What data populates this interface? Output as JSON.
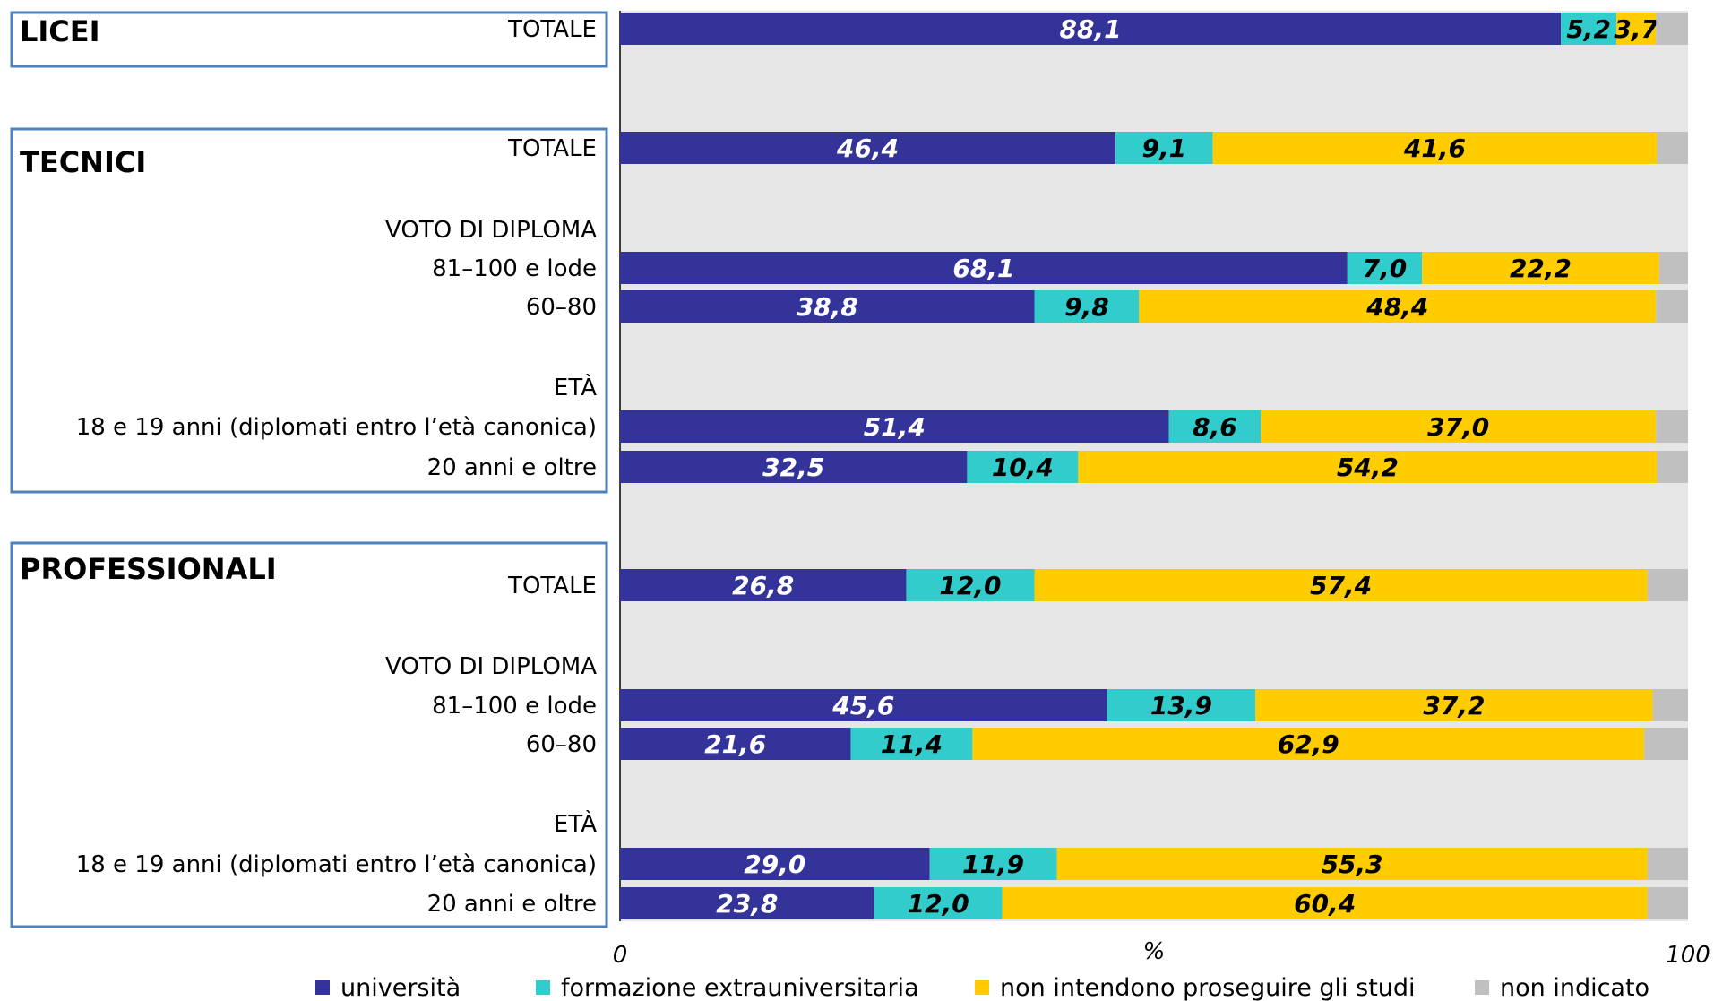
{
  "chart_data": {
    "type": "bar",
    "orientation": "horizontal",
    "stacked": true,
    "xlim": [
      0,
      100
    ],
    "xlabel": "%",
    "x_tick_labels": [
      "0",
      "100"
    ],
    "groups": [
      {
        "name": "LICEI",
        "rows": [
          {
            "label": "TOTALE",
            "kind": "bar",
            "values": [
              88.1,
              5.2,
              3.7,
              3.0
            ]
          }
        ]
      },
      {
        "name": "TECNICI",
        "rows": [
          {
            "label": "TOTALE",
            "kind": "bar",
            "values": [
              46.4,
              9.1,
              41.6,
              2.9
            ]
          },
          {
            "label": "VOTO DI DIPLOMA",
            "kind": "header"
          },
          {
            "label": "81–100 e lode",
            "kind": "bar",
            "values": [
              68.1,
              7.0,
              22.2,
              2.7
            ]
          },
          {
            "label": "60–80",
            "kind": "bar",
            "values": [
              38.8,
              9.8,
              48.4,
              3.0
            ]
          },
          {
            "label": "ETÀ",
            "kind": "header"
          },
          {
            "label": "18 e 19 anni (diplomati entro l’età canonica)",
            "kind": "bar",
            "values": [
              51.4,
              8.6,
              37.0,
              3.0
            ]
          },
          {
            "label": "20 anni e oltre",
            "kind": "bar",
            "values": [
              32.5,
              10.4,
              54.2,
              2.9
            ]
          }
        ]
      },
      {
        "name": "PROFESSIONALI",
        "rows": [
          {
            "label": "TOTALE",
            "kind": "bar",
            "values": [
              26.8,
              12.0,
              57.4,
              3.8
            ]
          },
          {
            "label": "VOTO DI DIPLOMA",
            "kind": "header"
          },
          {
            "label": "81–100 e lode",
            "kind": "bar",
            "values": [
              45.6,
              13.9,
              37.2,
              3.3
            ]
          },
          {
            "label": "60–80",
            "kind": "bar",
            "values": [
              21.6,
              11.4,
              62.9,
              4.1
            ]
          },
          {
            "label": "ETÀ",
            "kind": "header"
          },
          {
            "label": "18 e 19 anni (diplomati entro l’età canonica)",
            "kind": "bar",
            "values": [
              29.0,
              11.9,
              55.3,
              3.8
            ]
          },
          {
            "label": "20 anni e oltre",
            "kind": "bar",
            "values": [
              23.8,
              12.0,
              60.4,
              3.8
            ]
          }
        ]
      }
    ],
    "series": [
      {
        "name": "università",
        "color": "#333399",
        "label_color": "#ffffff"
      },
      {
        "name": "formazione extrauniversitaria",
        "color": "#33cccc",
        "label_color": "#000000"
      },
      {
        "name": "non intendono proseguire gli studi",
        "color": "#ffcc00",
        "label_color": "#000000"
      },
      {
        "name": "non indicato",
        "color": "#c0c0c0",
        "label_color": "#000000",
        "show_labels": false
      }
    ],
    "legend_position": "bottom",
    "plot_background": "#e6e6e6",
    "group_box_color": "#4f81bd"
  }
}
